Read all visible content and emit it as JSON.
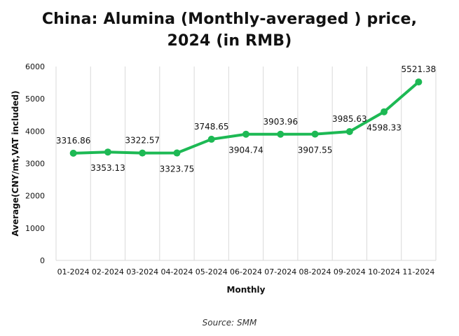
{
  "chart_data": {
    "type": "line",
    "title_lines": [
      "China: Alumina (Monthly-averaged ) price,",
      "2024 (in RMB)"
    ],
    "xlabel": "Monthly",
    "ylabel": "Average(CNY/mt,VAT included)",
    "source": "Source: SMM",
    "categories": [
      "01-2024",
      "02-2024",
      "03-2024",
      "04-2024",
      "05-2024",
      "06-2024",
      "07-2024",
      "08-2024",
      "09-2024",
      "10-2024",
      "11-2024"
    ],
    "values": [
      3316.86,
      3353.13,
      3322.57,
      3323.75,
      3748.65,
      3904.74,
      3903.96,
      3907.55,
      3985.63,
      4598.33,
      5521.38
    ],
    "data_labels": [
      "3316.86",
      "3353.13",
      "3322.57",
      "3323.75",
      "3748.65",
      "3904.74",
      "3903.96",
      "3907.55",
      "3985.63",
      "4598.33",
      "5521.38"
    ],
    "label_positions": [
      "above",
      "below",
      "above",
      "below",
      "above",
      "below",
      "above",
      "below",
      "above",
      "below",
      "above"
    ],
    "ylim": [
      0,
      6000
    ],
    "yticks": [
      0,
      1000,
      2000,
      3000,
      4000,
      5000,
      6000
    ],
    "grid": "vertical",
    "legend": "none",
    "colors": {
      "line": "#1db954",
      "marker": "#1db954",
      "grid": "#d9d9d9",
      "axis": "#d9d9d9"
    }
  }
}
